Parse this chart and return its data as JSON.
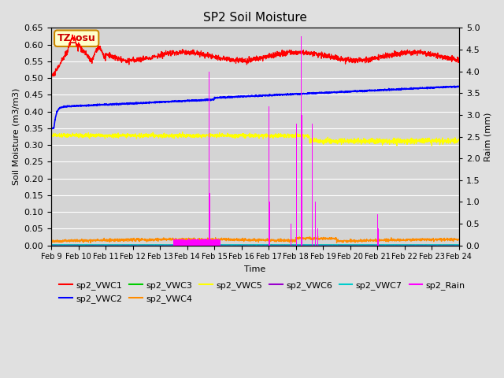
{
  "title": "SP2 Soil Moisture",
  "xlabel": "Time",
  "ylabel_left": "Soil Moisture (m3/m3)",
  "ylabel_right": "Raim (mm)",
  "ylim_left": [
    0,
    0.65
  ],
  "ylim_right": [
    0,
    5.0
  ],
  "fig_bg": "#e0e0e0",
  "plot_bg": "#d4d4d4",
  "grid_color": "#ffffff",
  "tz_label": "TZ_osu",
  "tz_box_facecolor": "#ffffcc",
  "tz_box_edgecolor": "#cc8800",
  "x_tick_labels": [
    "Feb 9",
    "Feb 10",
    "Feb 11",
    "Feb 12",
    "Feb 13",
    "Feb 14",
    "Feb 15",
    "Feb 16",
    "Feb 17",
    "Feb 18",
    "Feb 19",
    "Feb 20",
    "Feb 21",
    "Feb 22",
    "Feb 23",
    "Feb 24"
  ],
  "colors": {
    "vwc1": "#ff0000",
    "vwc2": "#0000ff",
    "vwc3": "#00cc00",
    "vwc4": "#ff8c00",
    "vwc5": "#ffff00",
    "vwc6": "#9900cc",
    "vwc7": "#00cccc",
    "rain": "#ff00ff"
  },
  "legend_row1": [
    "sp2_VWC1",
    "sp2_VWC2",
    "sp2_VWC3",
    "sp2_VWC4",
    "sp2_VWC5",
    "sp2_VWC6"
  ],
  "legend_row2": [
    "sp2_VWC7",
    "sp2_Rain"
  ],
  "legend_colors_row1": [
    "#ff0000",
    "#0000ff",
    "#00cc00",
    "#ff8c00",
    "#ffff00",
    "#9900cc"
  ],
  "legend_colors_row2": [
    "#00cccc",
    "#ff00ff"
  ]
}
